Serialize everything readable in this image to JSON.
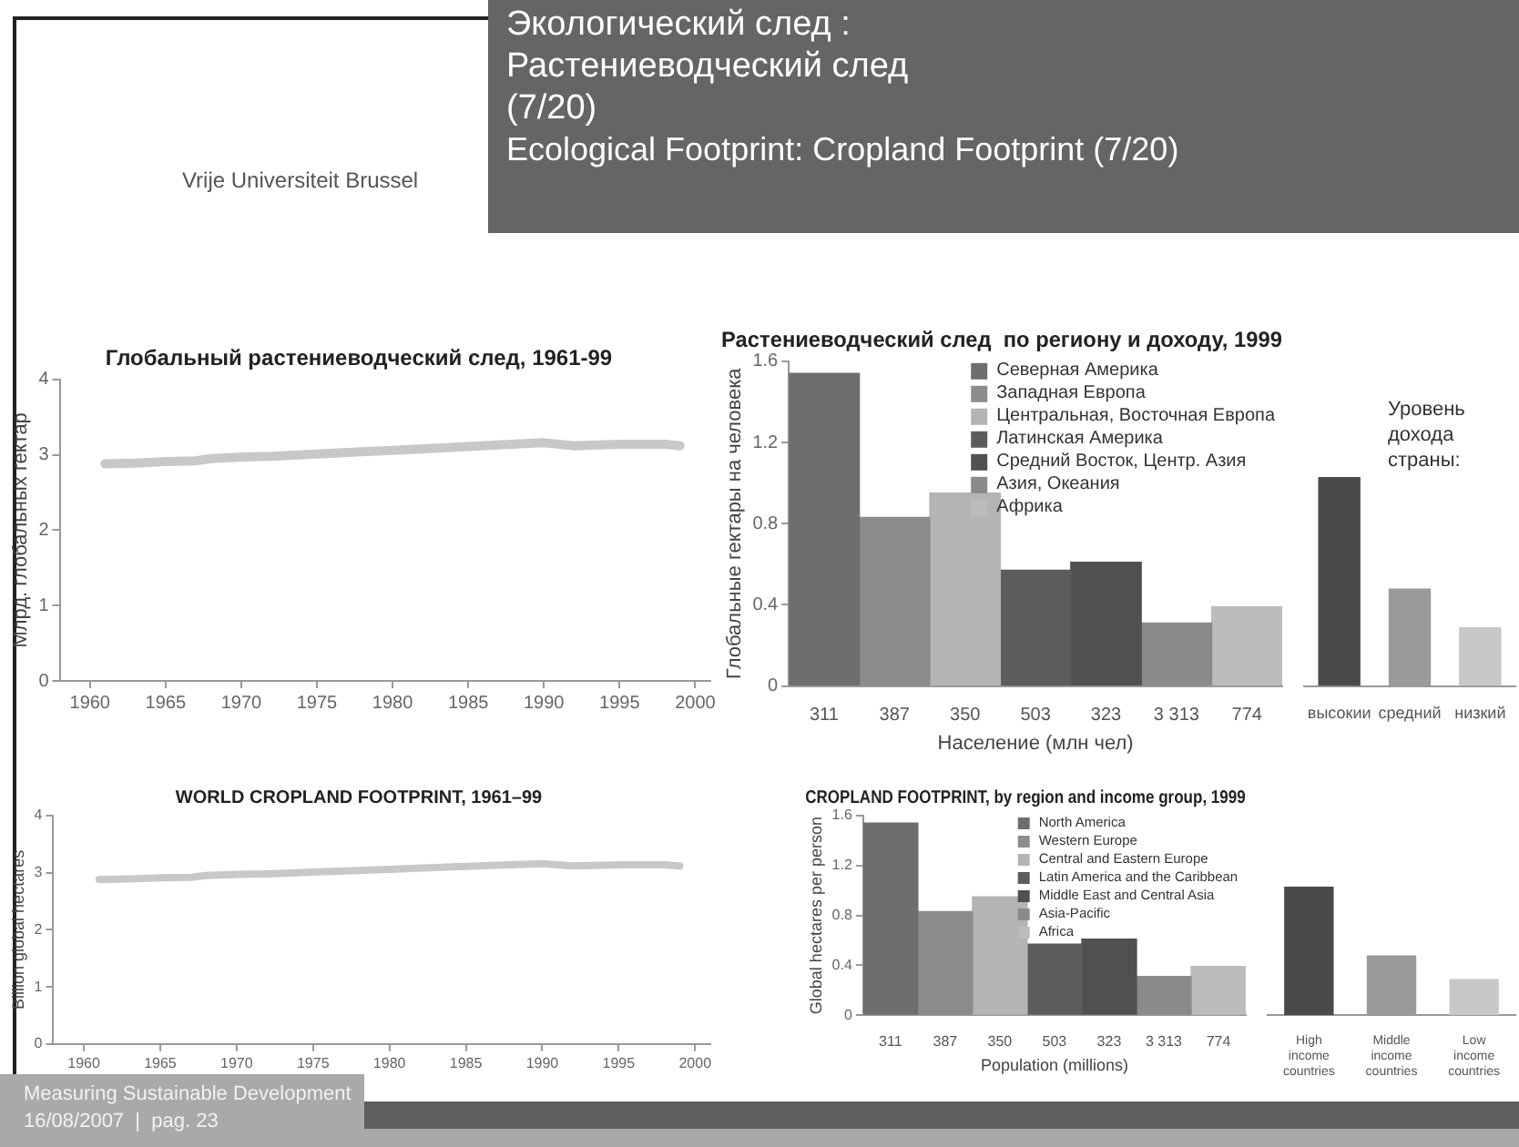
{
  "chart_data": [
    {
      "type": "line",
      "title": "Глобальный растениеводческий след, 1961-99",
      "ylabel": "Млрд. глобальных гектар",
      "x": [
        1961,
        1963,
        1965,
        1967,
        1968,
        1970,
        1972,
        1975,
        1978,
        1980,
        1983,
        1985,
        1987,
        1990,
        1992,
        1995,
        1998,
        1999
      ],
      "values": [
        2.88,
        2.89,
        2.91,
        2.92,
        2.95,
        2.97,
        2.98,
        3.01,
        3.04,
        3.06,
        3.09,
        3.11,
        3.13,
        3.16,
        3.12,
        3.14,
        3.14,
        3.12
      ],
      "color": "#c8c8c8",
      "marker": "none",
      "xlim": [
        1958,
        2001
      ],
      "xticks": [
        1960,
        1965,
        1970,
        1975,
        1980,
        1985,
        1990,
        1995,
        2000
      ],
      "ylim": [
        0,
        4
      ],
      "yticks": [
        0,
        1,
        2,
        3,
        4
      ],
      "annotations": [
        "Vrije Universiteit Brussel",
        "Экологический след :",
        "Растениеводческий след",
        "(7/20)",
        "Ecological Footprint: Cropland Footprint (7/20)",
        "Measuring Sustainable Development",
        "16/08/2007  |  pag. 23"
      ]
    },
    {
      "type": "bar",
      "title": "Растениеводческий след  по региону и доходу, 1999",
      "xlabel": "Население (млн чел)",
      "ylabel": "Глобальные гектары на человека",
      "categories": [
        "311",
        "387",
        "350",
        "503",
        "323",
        "3 313",
        "774"
      ],
      "stacked": true,
      "legend": "top right",
      "ylim": [
        0,
        1.6
      ],
      "yticks": [
        0,
        0.4,
        0.8,
        1.2,
        1.6
      ],
      "series": [
        {
          "name": "Северная Америка",
          "color": "#6e6e6e",
          "values": [
            1.54,
            null,
            null,
            null,
            null,
            null,
            null
          ]
        },
        {
          "name": "Западная Европа",
          "color": "#8c8c8c",
          "values": [
            null,
            0.83,
            null,
            null,
            null,
            null,
            null
          ]
        },
        {
          "name": "Центральная, Восточная Европа",
          "color": "#b4b4b4",
          "values": [
            null,
            null,
            0.95,
            null,
            null,
            null,
            null
          ]
        },
        {
          "name": "Латинская Америка",
          "color": "#5c5c5c",
          "values": [
            null,
            null,
            null,
            0.57,
            null,
            null,
            null
          ]
        },
        {
          "name": "Средний Восток, Центр. Азия",
          "color": "#505050",
          "values": [
            null,
            null,
            null,
            null,
            0.61,
            null,
            null
          ]
        },
        {
          "name": "Азия, Океания",
          "color": "#8a8a8a",
          "values": [
            null,
            null,
            null,
            null,
            null,
            0.31,
            null
          ]
        },
        {
          "name": "Африка",
          "color": "#bcbcbc",
          "values": [
            null,
            null,
            null,
            null,
            null,
            null,
            0.39
          ]
        }
      ]
    },
    {
      "type": "bar",
      "title": "Уровень дохода страны:",
      "categories": [
        "высокии",
        "средний",
        "низкий"
      ],
      "values": [
        1.03,
        0.48,
        0.29
      ],
      "colors": [
        "#4a4a4a",
        "#9a9a9a",
        "#c8c8c8"
      ],
      "ylim": [
        0,
        1.6
      ],
      "yticks": [
        0,
        0.4,
        0.8,
        1.2,
        1.6
      ],
      "tick_labels": "x"
    },
    {
      "type": "line",
      "title": "WORLD CROPLAND FOOTPRINT, 1961–99",
      "ylabel": "Billion global hectares",
      "x": [
        1961,
        1963,
        1965,
        1967,
        1968,
        1970,
        1972,
        1975,
        1978,
        1980,
        1983,
        1985,
        1987,
        1990,
        1992,
        1995,
        1998,
        1999
      ],
      "values": [
        2.88,
        2.89,
        2.91,
        2.92,
        2.95,
        2.97,
        2.98,
        3.01,
        3.04,
        3.06,
        3.09,
        3.11,
        3.13,
        3.16,
        3.12,
        3.14,
        3.14,
        3.12
      ],
      "color": "#c8c8c8",
      "marker": "none",
      "xlim": [
        1958,
        2001
      ],
      "xticks": [
        1960,
        1965,
        1970,
        1975,
        1980,
        1985,
        1990,
        1995,
        2000
      ],
      "ylim": [
        0,
        4
      ],
      "yticks": [
        0,
        1,
        2,
        3,
        4
      ]
    },
    {
      "type": "bar",
      "title": "CROPLAND FOOTPRINT, by region and income group, 1999",
      "xlabel": "Population (millions)",
      "ylabel": "Global hectares per person",
      "categories": [
        "311",
        "387",
        "350",
        "503",
        "323",
        "3 313",
        "774"
      ],
      "stacked": true,
      "legend": "top right",
      "ylim": [
        0,
        1.6
      ],
      "yticks": [
        0,
        0.4,
        0.8,
        1.2,
        1.6
      ],
      "series": [
        {
          "name": "North America",
          "color": "#6e6e6e",
          "values": [
            1.54,
            null,
            null,
            null,
            null,
            null,
            null
          ]
        },
        {
          "name": "Western Europe",
          "color": "#8c8c8c",
          "values": [
            null,
            0.83,
            null,
            null,
            null,
            null,
            null
          ]
        },
        {
          "name": "Central and Eastern Europe",
          "color": "#b4b4b4",
          "values": [
            null,
            null,
            0.95,
            null,
            null,
            null,
            null
          ]
        },
        {
          "name": "Latin America and the Caribbean",
          "color": "#5c5c5c",
          "values": [
            null,
            null,
            null,
            0.57,
            null,
            null,
            null
          ]
        },
        {
          "name": "Middle East and Central Asia",
          "color": "#505050",
          "values": [
            null,
            null,
            null,
            null,
            0.61,
            null,
            null
          ]
        },
        {
          "name": "Asia-Pacific",
          "color": "#8a8a8a",
          "values": [
            null,
            null,
            null,
            null,
            null,
            0.31,
            null
          ]
        },
        {
          "name": "Africa",
          "color": "#bcbcbc",
          "values": [
            null,
            null,
            null,
            null,
            null,
            null,
            0.39
          ]
        }
      ]
    },
    {
      "type": "bar",
      "categories": [
        "High income countries",
        "Middle income countries",
        "Low income countries"
      ],
      "values": [
        1.03,
        0.48,
        0.29
      ],
      "colors": [
        "#4a4a4a",
        "#9a9a9a",
        "#c8c8c8"
      ],
      "ylim": [
        0,
        1.6
      ],
      "yticks": [
        0,
        0.4,
        0.8,
        1.2,
        1.6
      ],
      "tick_labels": "x"
    }
  ]
}
